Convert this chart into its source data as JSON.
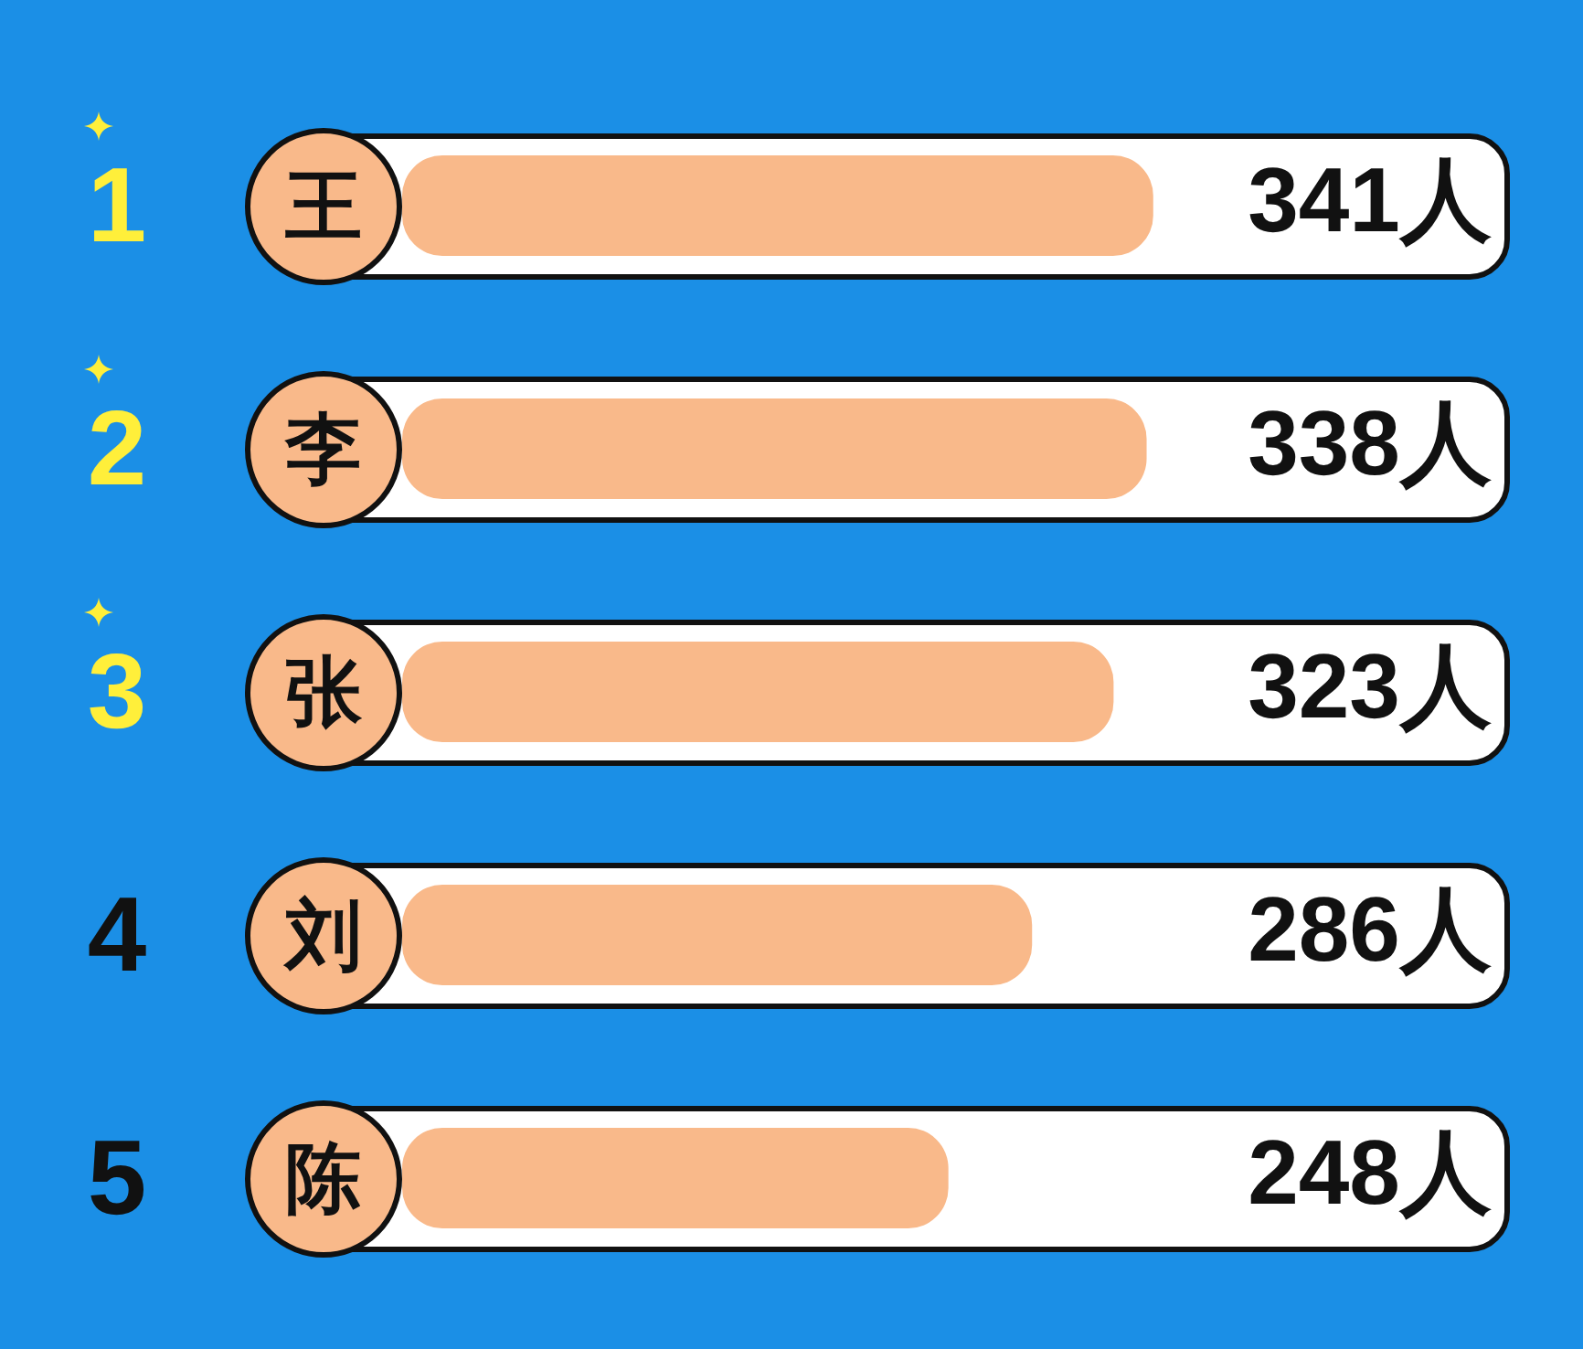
{
  "chart_data": {
    "type": "bar",
    "orientation": "horizontal",
    "categories": [
      "王",
      "李",
      "张",
      "刘",
      "陈"
    ],
    "values": [
      341,
      338,
      323,
      286,
      248
    ],
    "value_labels": [
      "341人",
      "338人",
      "323人",
      "286人",
      "248人"
    ],
    "color": "#f9b98a",
    "annotations": [
      "1",
      "2",
      "3",
      "4",
      "5"
    ]
  }
}
